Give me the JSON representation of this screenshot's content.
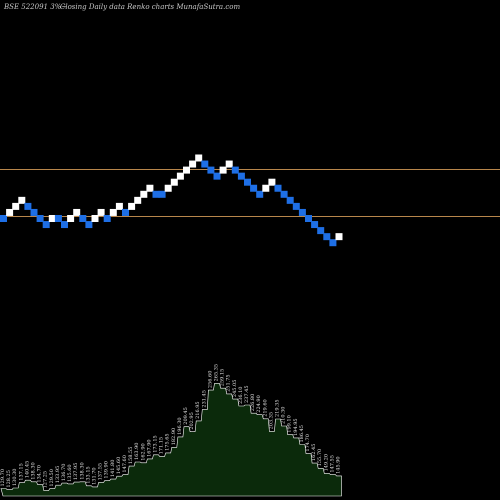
{
  "header": {
    "symbol": "BSE 522091 3%~",
    "description": "Closing Daily data  Renko  charts MunafaSutra.com"
  },
  "colors": {
    "background": "#000000",
    "up_brick": "#ffffff",
    "down_brick": "#1e6fe6",
    "reference_line": "#b8864b",
    "volume_fill": "#0b2a0b",
    "volume_stroke": "#ffffff"
  },
  "chart_data": {
    "type": "renko",
    "reference_lines": [
      {
        "value": 277.9
      },
      {
        "value": 233.5
      }
    ],
    "bricks": [
      {
        "level": 0,
        "color": "down"
      },
      {
        "level": 1,
        "color": "up"
      },
      {
        "level": 2,
        "color": "up"
      },
      {
        "level": 3,
        "color": "up"
      },
      {
        "level": 2,
        "color": "down"
      },
      {
        "level": 1,
        "color": "down"
      },
      {
        "level": 0,
        "color": "down"
      },
      {
        "level": -1,
        "color": "down"
      },
      {
        "level": 0,
        "color": "up"
      },
      {
        "level": 0,
        "color": "down"
      },
      {
        "level": -1,
        "color": "down"
      },
      {
        "level": 0,
        "color": "up"
      },
      {
        "level": 1,
        "color": "up"
      },
      {
        "level": 0,
        "color": "down"
      },
      {
        "level": -1,
        "color": "down"
      },
      {
        "level": 0,
        "color": "up"
      },
      {
        "level": 1,
        "color": "up"
      },
      {
        "level": 0,
        "color": "down"
      },
      {
        "level": 1,
        "color": "up"
      },
      {
        "level": 2,
        "color": "up"
      },
      {
        "level": 1,
        "color": "down"
      },
      {
        "level": 2,
        "color": "up"
      },
      {
        "level": 3,
        "color": "up"
      },
      {
        "level": 4,
        "color": "up"
      },
      {
        "level": 5,
        "color": "up"
      },
      {
        "level": 4,
        "color": "down"
      },
      {
        "level": 4,
        "color": "down"
      },
      {
        "level": 5,
        "color": "up"
      },
      {
        "level": 6,
        "color": "up"
      },
      {
        "level": 7,
        "color": "up"
      },
      {
        "level": 8,
        "color": "up"
      },
      {
        "level": 9,
        "color": "up"
      },
      {
        "level": 10,
        "color": "up"
      },
      {
        "level": 9,
        "color": "down"
      },
      {
        "level": 8,
        "color": "down"
      },
      {
        "level": 7,
        "color": "down"
      },
      {
        "level": 8,
        "color": "up"
      },
      {
        "level": 9,
        "color": "up"
      },
      {
        "level": 8,
        "color": "down"
      },
      {
        "level": 7,
        "color": "down"
      },
      {
        "level": 6,
        "color": "down"
      },
      {
        "level": 5,
        "color": "down"
      },
      {
        "level": 4,
        "color": "down"
      },
      {
        "level": 5,
        "color": "up"
      },
      {
        "level": 6,
        "color": "up"
      },
      {
        "level": 5,
        "color": "down"
      },
      {
        "level": 4,
        "color": "down"
      },
      {
        "level": 3,
        "color": "down"
      },
      {
        "level": 2,
        "color": "down"
      },
      {
        "level": 1,
        "color": "down"
      },
      {
        "level": 0,
        "color": "down"
      },
      {
        "level": -1,
        "color": "down"
      },
      {
        "level": -2,
        "color": "down"
      },
      {
        "level": -3,
        "color": "down"
      },
      {
        "level": -4,
        "color": "down"
      },
      {
        "level": -3,
        "color": "up"
      }
    ],
    "volume_labels": [
      "129.70",
      "128.25",
      "130.30",
      "137.15",
      "140.45",
      "138.30",
      "134.70",
      "127.25",
      "129.50",
      "133.95",
      "136.70",
      "135.60",
      "137.95",
      "138.30",
      "133.15",
      "131.70",
      "137.55",
      "139.90",
      "141.80",
      "145.60",
      "147.60",
      "158.55",
      "163.90",
      "162.90",
      "167.90",
      "173.15",
      "171.15",
      "175.65",
      "182.90",
      "196.30",
      "209.45",
      "202.95",
      "216.95",
      "231.45",
      "256.60",
      "265.35",
      "259.15",
      "251.75",
      "245.05",
      "236.10",
      "237.45",
      "226.80",
      "224.90",
      "219.60",
      "203.35",
      "219.35",
      "210.30",
      "199.10",
      "194.95",
      "186.45",
      "174.70",
      "162.45",
      "155.70",
      "149.20",
      "147.55",
      "145.90"
    ]
  }
}
